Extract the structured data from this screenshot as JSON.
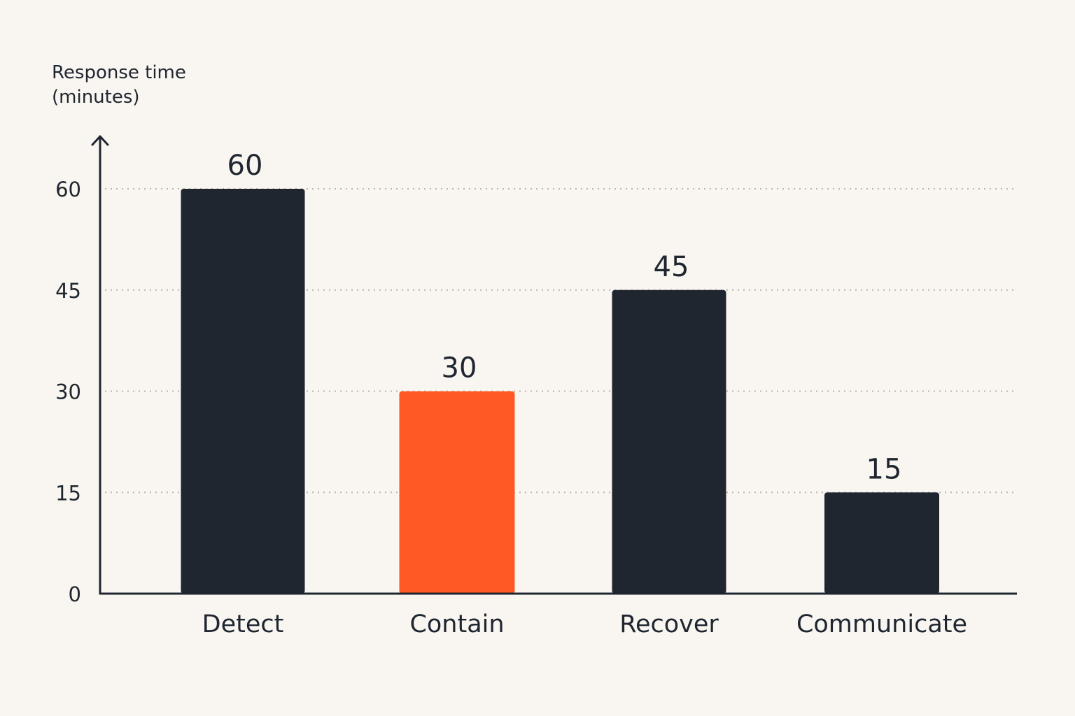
{
  "chart_data": {
    "type": "bar",
    "ylabel_lines": [
      "Response time",
      "(minutes)"
    ],
    "categories": [
      "Detect",
      "Contain",
      "Recover",
      "Communicate"
    ],
    "values": [
      60,
      30,
      45,
      15
    ],
    "bar_colors": [
      "#1f2630",
      "#ff5a26",
      "#1f2630",
      "#1f2630"
    ],
    "yticks": [
      0,
      15,
      30,
      45,
      60
    ],
    "ylim": [
      0,
      60
    ],
    "grid": true,
    "data_labels": true
  },
  "colors": {
    "background": "#f9f6f1",
    "bar_default": "#1f2630",
    "accent": "#ff5a26",
    "axis": "#1f2630"
  }
}
